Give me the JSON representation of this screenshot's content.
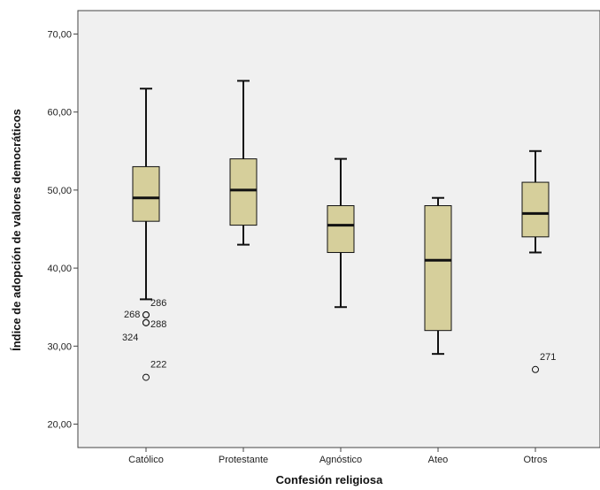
{
  "chart_data": {
    "type": "boxplot",
    "xlabel": "Confesión religiosa",
    "ylabel": "Índice de adopción de valores democráticos",
    "ylim": [
      17,
      73
    ],
    "yticks": [
      20,
      30,
      40,
      50,
      60,
      70
    ],
    "ytick_labels": [
      "20,00",
      "30,00",
      "40,00",
      "50,00",
      "60,00",
      "70,00"
    ],
    "categories": [
      "Católico",
      "Protestante",
      "Agnóstico",
      "Ateo",
      "Otros"
    ],
    "boxes": [
      {
        "min": 36,
        "q1": 46,
        "median": 49,
        "q3": 53,
        "max": 63,
        "outliers": [
          {
            "value": 34,
            "label": "268"
          },
          {
            "value": 34,
            "label": "286"
          },
          {
            "value": 33,
            "label": "288"
          },
          {
            "value": 33,
            "label": "324"
          },
          {
            "value": 26,
            "label": "222"
          }
        ]
      },
      {
        "min": 43,
        "q1": 45.5,
        "median": 50,
        "q3": 54,
        "max": 64,
        "outliers": []
      },
      {
        "min": 35,
        "q1": 42,
        "median": 45.5,
        "q3": 48,
        "max": 54,
        "outliers": []
      },
      {
        "min": 29,
        "q1": 32,
        "median": 41,
        "q3": 48,
        "max": 49,
        "outliers": []
      },
      {
        "min": 42,
        "q1": 44,
        "median": 47,
        "q3": 51,
        "max": 55,
        "outliers": [
          {
            "value": 27,
            "label": "271"
          }
        ]
      }
    ],
    "grid": false,
    "colors": {
      "plot_background": "#f0f0f0",
      "box_fill": "#d6cf9b",
      "line": "#111111",
      "frame": "#444444"
    }
  }
}
